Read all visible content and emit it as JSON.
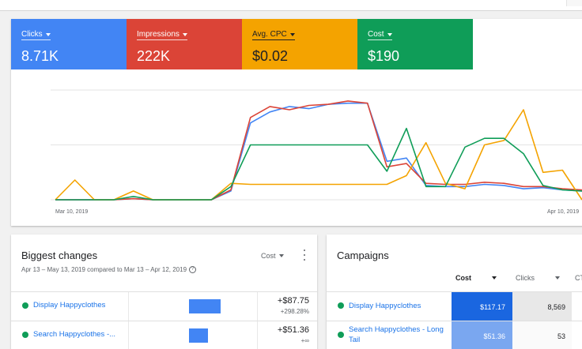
{
  "metrics": [
    {
      "label": "Clicks",
      "value": "8.71K",
      "color": "#4285f4"
    },
    {
      "label": "Impressions",
      "value": "222K",
      "color": "#db4437"
    },
    {
      "label": "Avg. CPC",
      "value": "$0.02",
      "color": "#f4a300"
    },
    {
      "label": "Cost",
      "value": "$190",
      "color": "#0f9d58"
    }
  ],
  "chart_data": {
    "type": "line",
    "x_start_label": "Mar 10, 2019",
    "x_end_label": "Apr 10, 2019",
    "grid": true,
    "ylim": [
      0,
      100
    ],
    "series": [
      {
        "name": "Clicks",
        "color": "#4285f4",
        "values": [
          0,
          0,
          0,
          0,
          1,
          0,
          0,
          0,
          0,
          8,
          70,
          80,
          85,
          83,
          87,
          88,
          88,
          35,
          38,
          13,
          12,
          12,
          14,
          13,
          10,
          11,
          9,
          8
        ]
      },
      {
        "name": "Impressions",
        "color": "#db4437",
        "values": [
          0,
          0,
          0,
          0,
          1,
          0,
          0,
          0,
          0,
          9,
          75,
          85,
          82,
          86,
          87,
          90,
          88,
          30,
          33,
          15,
          14,
          14,
          16,
          15,
          12,
          12,
          10,
          9
        ]
      },
      {
        "name": "Avg. CPC",
        "color": "#f4a300",
        "values": [
          0,
          18,
          0,
          0,
          8,
          0,
          0,
          0,
          0,
          15,
          14,
          14,
          14,
          14,
          14,
          14,
          14,
          14,
          22,
          52,
          15,
          10,
          50,
          54,
          82,
          25,
          27,
          0
        ]
      },
      {
        "name": "Cost",
        "color": "#0f9d58",
        "values": [
          0,
          0,
          0,
          0,
          3,
          0,
          0,
          0,
          0,
          12,
          50,
          50,
          50,
          50,
          50,
          50,
          50,
          26,
          65,
          12,
          12,
          48,
          56,
          56,
          42,
          13,
          9,
          8
        ]
      }
    ]
  },
  "biggest_changes": {
    "title": "Biggest changes",
    "subtitle": "Apr 13 – May 13, 2019 compared to Mar 13 – Apr 12, 2019",
    "sort_label": "Cost",
    "rows": [
      {
        "name": "Display Happyclothes",
        "delta": "+$87.75",
        "pct": "+298.28%",
        "bar_fraction": 1.0
      },
      {
        "name": "Search Happyclothes -...",
        "delta": "+$51.36",
        "pct": "+∞",
        "bar_fraction": 0.6
      }
    ]
  },
  "campaigns": {
    "title": "Campaigns",
    "columns": [
      "Cost",
      "Clicks",
      "CT"
    ],
    "rows": [
      {
        "name": "Display Happyclothes",
        "cost": "$117.17",
        "clicks": "8,569",
        "cost_color": "#1a66e0"
      },
      {
        "name": "Search Happyclothes - Long Tail",
        "cost": "$51.36",
        "clicks": "53",
        "cost_color": "#7aa7f0"
      }
    ]
  }
}
